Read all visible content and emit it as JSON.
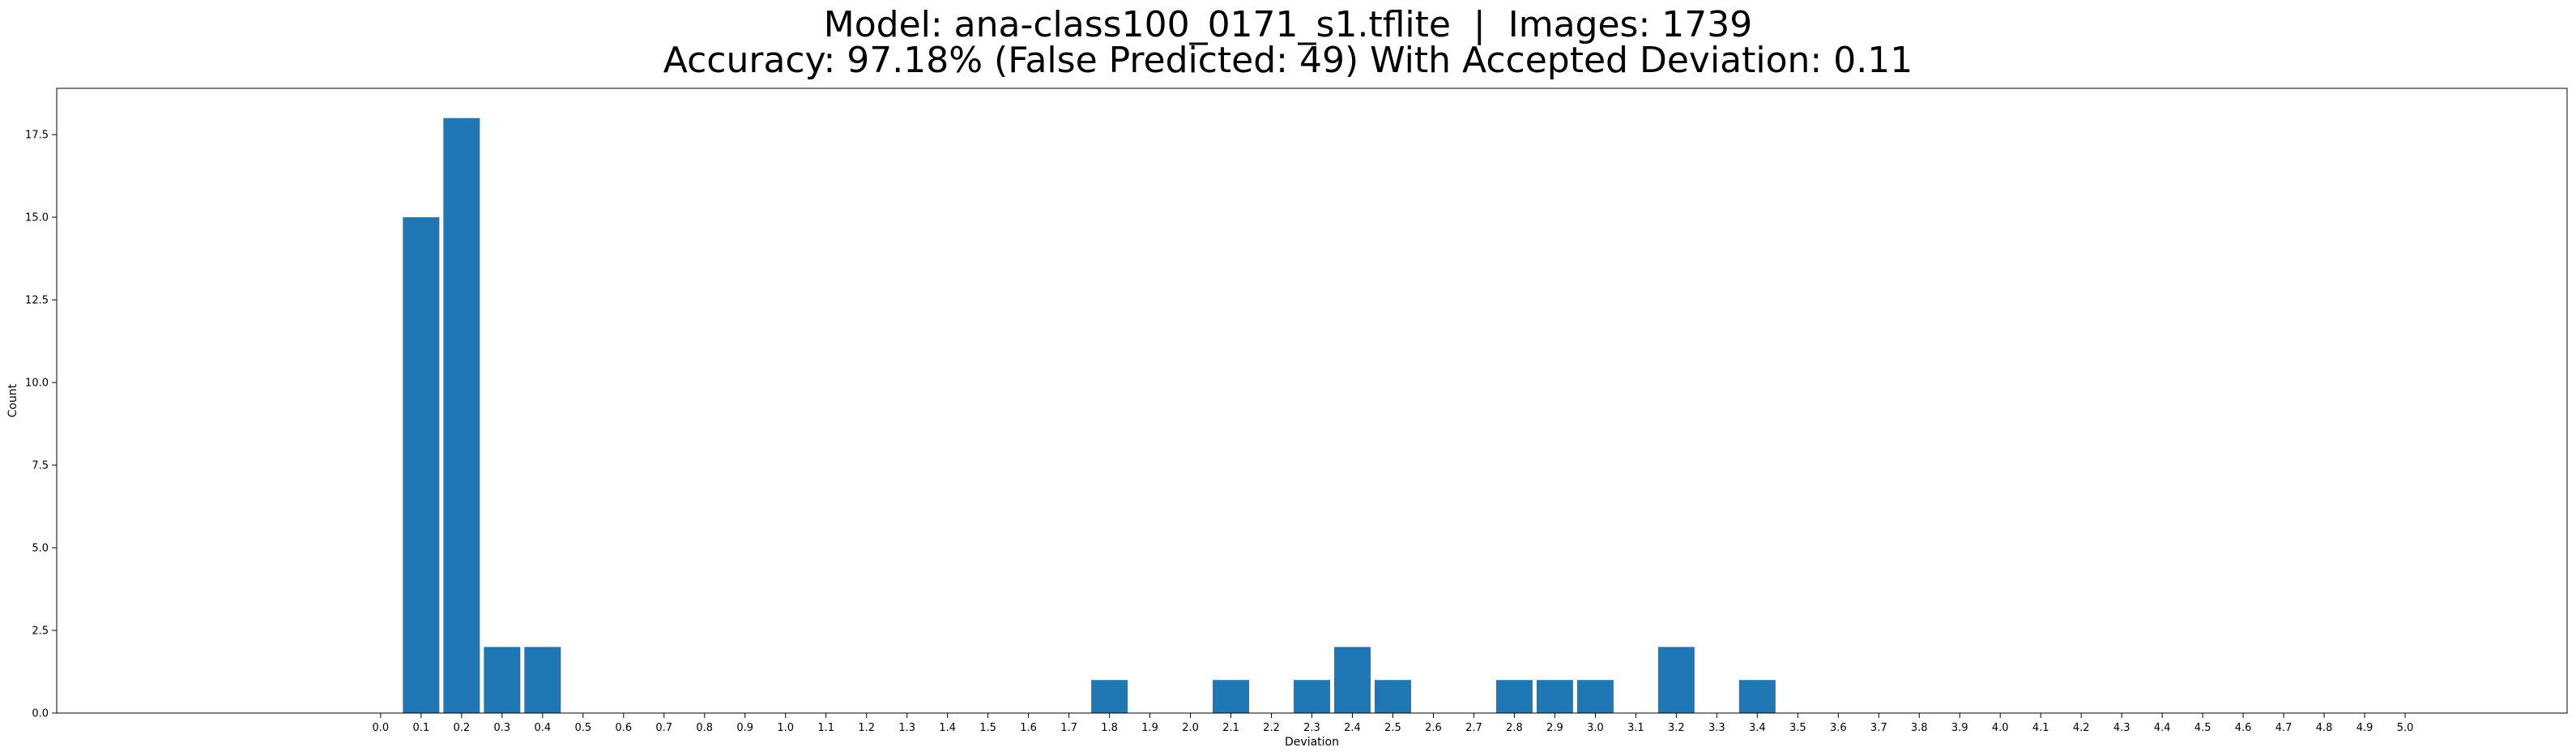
{
  "chart_data": {
    "type": "bar",
    "title": "Model: ana-class100_0171_s1.tflite  |  Images: 1739",
    "subtitle": "Accuracy: 97.18% (False Predicted: 49) With Accepted Deviation: 0.11",
    "xlabel": "Deviation",
    "ylabel": "Count",
    "xlim": [
      -0.8,
      5.4
    ],
    "ylim": [
      0,
      18.9
    ],
    "x_ticks": [
      "0.0",
      "0.1",
      "0.2",
      "0.3",
      "0.4",
      "0.5",
      "0.6",
      "0.7",
      "0.8",
      "0.9",
      "1.0",
      "1.1",
      "1.2",
      "1.3",
      "1.4",
      "1.5",
      "1.6",
      "1.7",
      "1.8",
      "1.9",
      "2.0",
      "2.1",
      "2.2",
      "2.3",
      "2.4",
      "2.5",
      "2.6",
      "2.7",
      "2.8",
      "2.9",
      "3.0",
      "3.1",
      "3.2",
      "3.3",
      "3.4",
      "3.5",
      "3.6",
      "3.7",
      "3.8",
      "3.9",
      "4.0",
      "4.1",
      "4.2",
      "4.3",
      "4.4",
      "4.5",
      "4.6",
      "4.7",
      "4.8",
      "4.9",
      "5.0"
    ],
    "y_ticks": [
      "0.0",
      "2.5",
      "5.0",
      "7.5",
      "10.0",
      "12.5",
      "15.0",
      "17.5"
    ],
    "bar_width": 0.09,
    "color": "#1f77b4",
    "x": [
      0.1,
      0.2,
      0.3,
      0.4,
      1.8,
      2.1,
      2.3,
      2.4,
      2.5,
      2.8,
      2.9,
      3.0,
      3.2,
      3.4
    ],
    "values": [
      15,
      18,
      2,
      2,
      1,
      1,
      1,
      2,
      1,
      1,
      1,
      1,
      2,
      1
    ],
    "grid": false,
    "legend": "none"
  }
}
